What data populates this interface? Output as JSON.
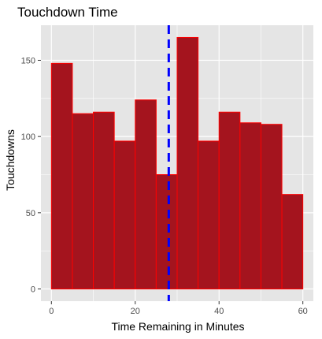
{
  "chart_data": {
    "type": "bar",
    "title": "Touchdown Time",
    "xlabel": "Time Remaining in Minutes",
    "ylabel": "Touchdowns",
    "xlim": [
      -2.5,
      62.5
    ],
    "ylim": [
      -8,
      173
    ],
    "xticks": [
      0,
      20,
      40,
      60
    ],
    "yticks": [
      0,
      50,
      100,
      150
    ],
    "bins": [
      {
        "x0": 0,
        "x1": 5,
        "value": 148
      },
      {
        "x0": 5,
        "x1": 10,
        "value": 115
      },
      {
        "x0": 10,
        "x1": 15,
        "value": 116
      },
      {
        "x0": 15,
        "x1": 20,
        "value": 97
      },
      {
        "x0": 20,
        "x1": 25,
        "value": 124
      },
      {
        "x0": 25,
        "x1": 30,
        "value": 75
      },
      {
        "x0": 30,
        "x1": 35,
        "value": 165
      },
      {
        "x0": 35,
        "x1": 40,
        "value": 97
      },
      {
        "x0": 40,
        "x1": 45,
        "value": 116
      },
      {
        "x0": 45,
        "x1": 50,
        "value": 109
      },
      {
        "x0": 50,
        "x1": 55,
        "value": 108
      },
      {
        "x0": 55,
        "x1": 60,
        "value": 62
      }
    ],
    "vline": {
      "x": 28,
      "style": "dashed"
    },
    "grid": true,
    "legend": "none",
    "colors": {
      "panel_bg": "#e5e5e5",
      "grid": "#ffffff",
      "bar_fill": "#a4141e",
      "bar_stroke": "#ff0000",
      "vline": "#0000ff",
      "tick_text": "#4d4d4d"
    }
  }
}
